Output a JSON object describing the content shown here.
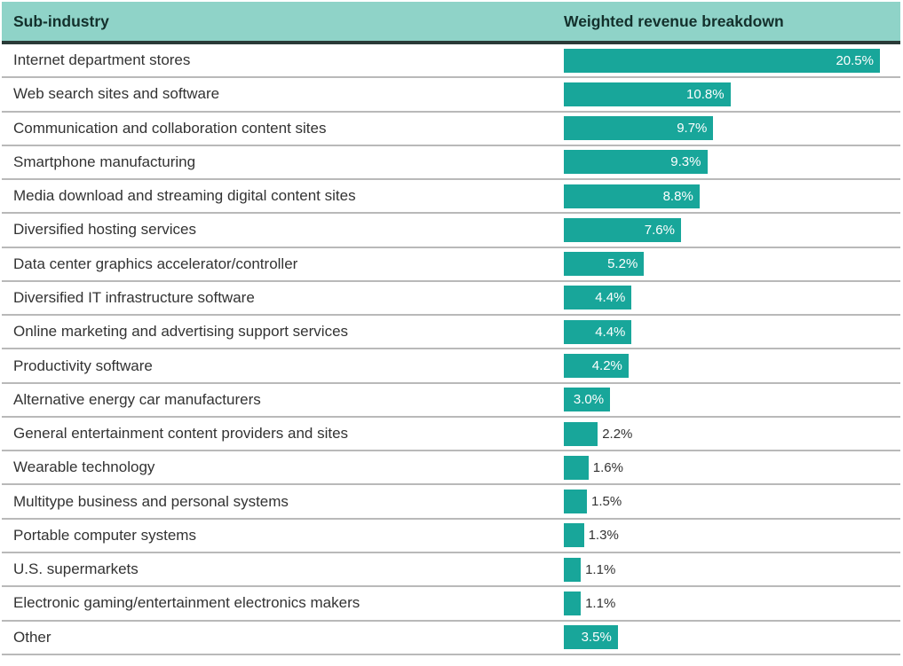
{
  "chart_data": {
    "type": "bar",
    "orientation": "horizontal",
    "column_headers": [
      "Sub-industry",
      "Weighted revenue breakdown"
    ],
    "categories": [
      "Internet department stores",
      "Web search sites and software",
      "Communication and collaboration content sites",
      "Smartphone manufacturing",
      "Media download and streaming digital content sites",
      "Diversified hosting services",
      "Data center graphics accelerator/controller",
      "Diversified IT infrastructure software",
      "Online marketing and advertising support services",
      "Productivity software",
      "Alternative energy car manufacturers",
      "General entertainment content providers and sites",
      "Wearable technology",
      "Multitype business and personal systems",
      "Portable computer systems",
      "U.S. supermarkets",
      "Electronic gaming/entertainment electronics makers",
      "Other"
    ],
    "values": [
      20.5,
      10.8,
      9.7,
      9.3,
      8.8,
      7.6,
      5.2,
      4.4,
      4.4,
      4.2,
      3.0,
      2.2,
      1.6,
      1.5,
      1.3,
      1.1,
      1.1,
      3.5
    ],
    "value_format": "percent",
    "xlim": [
      0,
      20.5
    ],
    "grid": false,
    "legend": "none",
    "value_labels": "shown; inside bar (white) for larger values, outside bar (dark) for values 2.2% and below"
  },
  "colors": {
    "bar": "#18a69a",
    "header_background": "#8fd3c8",
    "header_text": "#13302c",
    "header_rule": "#2a3a37",
    "row_divider": "#b9b9b9",
    "row_text": "#333333",
    "bar_label_inside": "#ffffff",
    "bar_label_outside": "#333333"
  }
}
